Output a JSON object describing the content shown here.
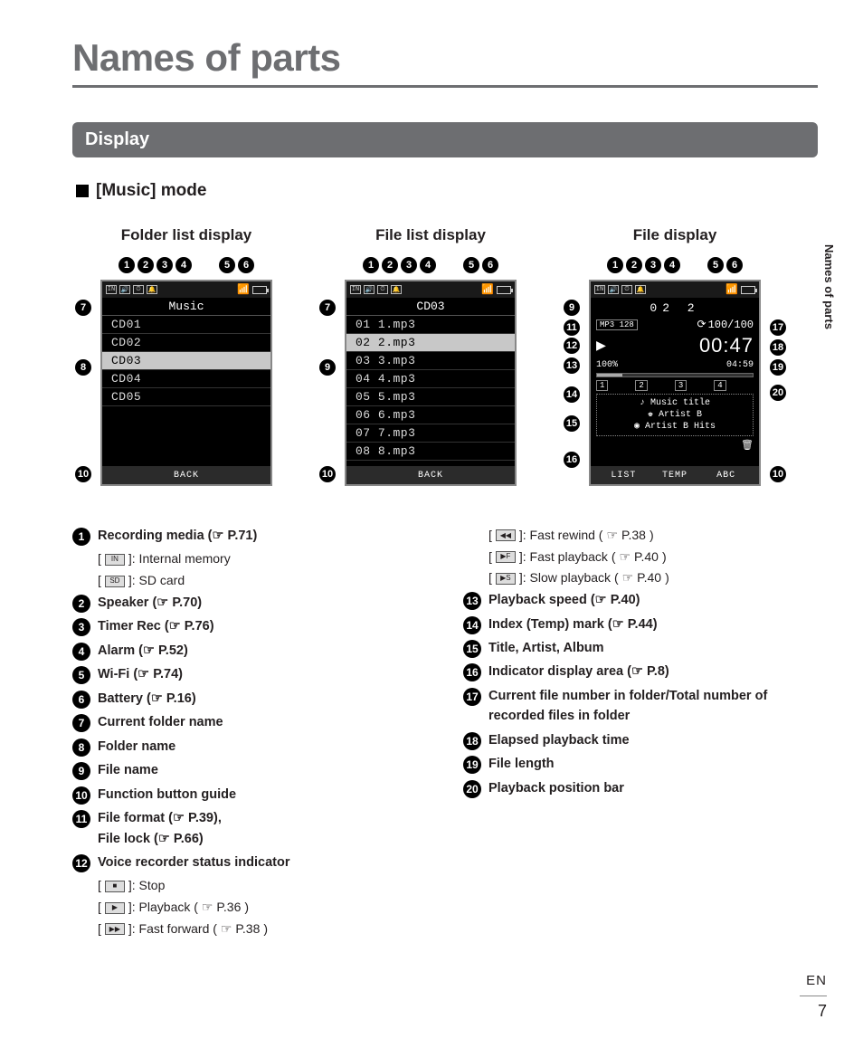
{
  "page": {
    "title": "Names of parts",
    "section": "Display",
    "mode_label": "[Music] mode",
    "side_tab": "Names of parts",
    "lang": "EN",
    "page_number": "7"
  },
  "screens": {
    "folder": {
      "caption": "Folder list display",
      "top_callouts_left": [
        "1",
        "2",
        "3",
        "4"
      ],
      "top_callouts_right": [
        "5",
        "6"
      ],
      "side_left": [
        "7",
        "8",
        "10"
      ],
      "header": "Music",
      "rows": [
        "CD01",
        "CD02",
        "CD03",
        "CD04",
        "CD05"
      ],
      "selected_index": 2,
      "footer": [
        "BACK"
      ]
    },
    "filelist": {
      "caption": "File list display",
      "top_callouts_left": [
        "1",
        "2",
        "3",
        "4"
      ],
      "top_callouts_right": [
        "5",
        "6"
      ],
      "side_left": [
        "7",
        "9",
        "10"
      ],
      "header": "CD03",
      "rows": [
        "01 1.mp3",
        "02 2.mp3",
        "03 3.mp3",
        "04 4.mp3",
        "05 5.mp3",
        "06 6.mp3",
        "07 7.mp3",
        "08 8.mp3"
      ],
      "selected_index": 1,
      "footer": [
        "BACK"
      ]
    },
    "file": {
      "caption": "File display",
      "top_callouts_left": [
        "1",
        "2",
        "3",
        "4"
      ],
      "top_callouts_right": [
        "5",
        "6"
      ],
      "side_left": [
        "9",
        "11",
        "12",
        "13",
        "14",
        "15",
        "16"
      ],
      "side_right": [
        "17",
        "18",
        "19",
        "20",
        "10"
      ],
      "track_header": "02 2",
      "format_badge": "MP3 128",
      "counter": "100/100",
      "elapsed": "00:47",
      "speed": "100%",
      "length": "04:59",
      "marks": [
        "1",
        "2",
        "3",
        "4"
      ],
      "tags_title": "Music title",
      "tags_artist": "Artist B",
      "tags_album": "Artist B Hits",
      "footer": [
        "LIST",
        "TEMP",
        "ABC"
      ]
    }
  },
  "legend_left": [
    {
      "n": "1",
      "bold": "Recording media (",
      "ref": "P.71",
      "tail": ")",
      "subs": [
        {
          "icon": "IN",
          "text": ": Internal memory"
        },
        {
          "icon": "SD",
          "text": ": SD card"
        }
      ]
    },
    {
      "n": "2",
      "bold": "Speaker (",
      "ref": "P.70",
      "tail": ")"
    },
    {
      "n": "3",
      "bold": "Timer Rec (",
      "ref": "P.76",
      "tail": ")"
    },
    {
      "n": "4",
      "bold": "Alarm (",
      "ref": "P.52",
      "tail": ")"
    },
    {
      "n": "5",
      "bold": "Wi-Fi (",
      "ref": "P.74",
      "tail": ")"
    },
    {
      "n": "6",
      "bold": "Battery (",
      "ref": "P.16",
      "tail": ")"
    },
    {
      "n": "7",
      "bold": "Current folder name"
    },
    {
      "n": "8",
      "bold": "Folder name"
    },
    {
      "n": "9",
      "bold": "File name"
    },
    {
      "n": "10",
      "bold": "Function button guide"
    },
    {
      "n": "11",
      "bold": "File format (",
      "ref": "P.39",
      "tail": "),",
      "bold2": "File lock (",
      "ref2": "P.66",
      "tail2": ")"
    },
    {
      "n": "12",
      "bold": "Voice recorder status indicator",
      "subs": [
        {
          "icon": "■",
          "text": ": Stop"
        },
        {
          "icon": "▶",
          "text": ": Playback (",
          "ref": "P.36",
          "tail": ")"
        },
        {
          "icon": "▶▶",
          "text": ": Fast forward (",
          "ref": "P.38",
          "tail": ")"
        }
      ]
    }
  ],
  "legend_right_prefix_subs": [
    {
      "icon": "◀◀",
      "text": ": Fast rewind (",
      "ref": "P.38",
      "tail": ")"
    },
    {
      "icon": "▶F",
      "text": ": Fast playback (",
      "ref": "P.40",
      "tail": ")"
    },
    {
      "icon": "▶S",
      "text": ": Slow playback (",
      "ref": "P.40",
      "tail": ")"
    }
  ],
  "legend_right": [
    {
      "n": "13",
      "bold": "Playback speed (",
      "ref": "P.40",
      "tail": ")"
    },
    {
      "n": "14",
      "bold": "Index (Temp) mark (",
      "ref": "P.44",
      "tail": ")"
    },
    {
      "n": "15",
      "bold": "Title, Artist, Album"
    },
    {
      "n": "16",
      "bold": "Indicator display area (",
      "ref": "P.8",
      "tail": ")"
    },
    {
      "n": "17",
      "bold": "Current file number in folder/Total number of recorded files in folder"
    },
    {
      "n": "18",
      "bold": "Elapsed playback time"
    },
    {
      "n": "19",
      "bold": "File length"
    },
    {
      "n": "20",
      "bold": "Playback position bar"
    }
  ]
}
